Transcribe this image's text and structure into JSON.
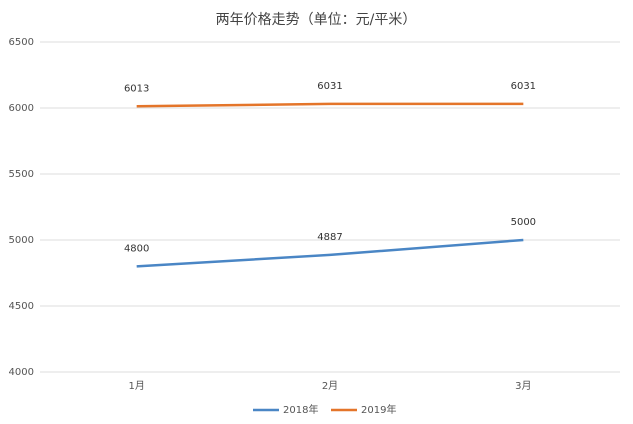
{
  "chart_data": {
    "type": "line",
    "title": "两年价格走势（单位：元/平米）",
    "categories": [
      "1月",
      "2月",
      "3月"
    ],
    "series": [
      {
        "name": "2018年",
        "color": "#4a86c5",
        "values": [
          4800,
          4887,
          5000
        ]
      },
      {
        "name": "2019年",
        "color": "#e4752a",
        "values": [
          6013,
          6031,
          6031
        ]
      }
    ],
    "ylim": [
      4000,
      6500
    ],
    "yticks": [
      4000,
      4500,
      5000,
      5500,
      6000,
      6500
    ],
    "grid": true,
    "legend": "bottom"
  }
}
